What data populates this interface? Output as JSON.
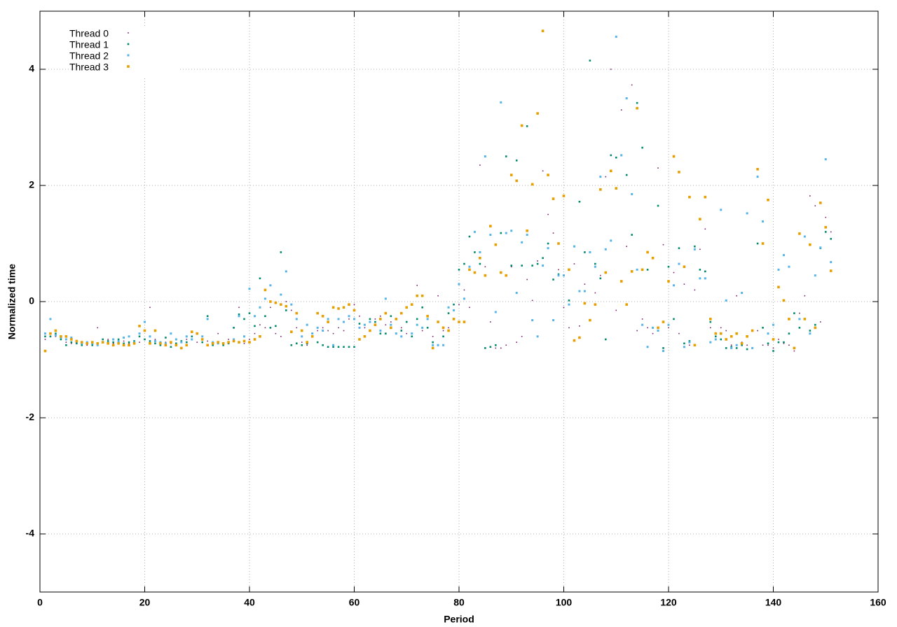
{
  "chart_data": {
    "type": "scatter",
    "x_label": "Period",
    "y_label": "Normalized time",
    "xlim": [
      0,
      160
    ],
    "ylim": [
      -5,
      5
    ],
    "xticks": [
      0,
      20,
      40,
      60,
      80,
      100,
      120,
      140,
      160
    ],
    "yticks": [
      -4,
      -2,
      0,
      2,
      4
    ],
    "grid": true,
    "legend": "top-left",
    "x": [
      1,
      2,
      3,
      4,
      5,
      6,
      7,
      8,
      9,
      10,
      11,
      12,
      13,
      14,
      15,
      16,
      17,
      18,
      19,
      20,
      21,
      22,
      23,
      24,
      25,
      26,
      27,
      28,
      29,
      30,
      31,
      32,
      33,
      34,
      35,
      36,
      37,
      38,
      39,
      40,
      41,
      42,
      43,
      44,
      45,
      46,
      47,
      48,
      49,
      50,
      51,
      52,
      53,
      54,
      55,
      56,
      57,
      58,
      59,
      60,
      61,
      62,
      63,
      64,
      65,
      66,
      67,
      68,
      69,
      70,
      71,
      72,
      73,
      74,
      75,
      76,
      77,
      78,
      79,
      80,
      81,
      82,
      83,
      84,
      85,
      86,
      87,
      88,
      89,
      90,
      91,
      92,
      93,
      94,
      95,
      96,
      97,
      98,
      99,
      100,
      101,
      102,
      103,
      104,
      105,
      106,
      107,
      108,
      109,
      110,
      111,
      112,
      113,
      114,
      115,
      116,
      117,
      118,
      119,
      120,
      121,
      122,
      123,
      124,
      125,
      126,
      127,
      128,
      129,
      130,
      131,
      132,
      133,
      134,
      135,
      136,
      137,
      138,
      139,
      140,
      141,
      142,
      143,
      144,
      145,
      146,
      147,
      148,
      149,
      150,
      151
    ],
    "series": [
      {
        "name": "Thread 0",
        "color": "#7a1f6e",
        "values": [
          -0.65,
          -0.55,
          -0.6,
          -0.65,
          -0.7,
          -0.72,
          -0.7,
          -0.72,
          -0.75,
          -0.7,
          -0.45,
          -0.7,
          -0.65,
          -0.72,
          -0.7,
          -0.68,
          -0.72,
          -0.7,
          -0.7,
          -0.65,
          -0.1,
          -0.65,
          -0.7,
          -0.7,
          -0.72,
          -0.75,
          -0.7,
          -0.65,
          -0.6,
          -0.7,
          -0.65,
          -0.68,
          -0.7,
          -0.55,
          -0.72,
          -0.65,
          -0.68,
          -0.1,
          -0.72,
          -0.65,
          -0.55,
          -0.4,
          -0.45,
          -0.1,
          -0.55,
          -0.6,
          0,
          -0.15,
          -0.45,
          -0.7,
          -0.75,
          -0.55,
          -0.5,
          -0.45,
          -0.5,
          -0.55,
          -0.45,
          -0.5,
          -0.3,
          -0.05,
          -0.25,
          -0.45,
          -0.35,
          -0.3,
          -0.25,
          -0.4,
          -0.35,
          -0.55,
          -0.45,
          -0.55,
          -0.05,
          0.28,
          -0.5,
          -0.3,
          -0.6,
          0.1,
          -0.5,
          -0.45,
          -0.3,
          -0.05,
          0.2,
          -0.1,
          0.5,
          2.35,
          0.6,
          -0.35,
          -0.8,
          -0.8,
          -0.75,
          0.6,
          -0.7,
          -0.6,
          0.38,
          0.02,
          0.7,
          2.25,
          1.5,
          1.18,
          0.55,
          -0.1,
          -0.45,
          0.65,
          -0.42,
          0.3,
          0.85,
          0.15,
          0.45,
          2.15,
          4.0,
          -0.15,
          3.3,
          0.95,
          3.73,
          -0.5,
          -0.3,
          -0.45,
          -0.55,
          2.3,
          0.98,
          -0.45,
          0.5,
          -0.55,
          0.3,
          -0.75,
          0.2,
          0.9,
          1.25,
          -0.45,
          -0.65,
          -0.45,
          -0.5,
          -0.75,
          0.1,
          -0.7,
          -0.75,
          -0.8,
          -0.5,
          -0.75,
          -0.75,
          -0.8,
          -0.65,
          -0.72,
          -0.75,
          -0.85,
          -0.2,
          0.1,
          1.82,
          1.65,
          -0.35,
          1.45,
          1.2
        ]
      },
      {
        "name": "Thread 1",
        "color": "#00896b",
        "values": [
          -0.6,
          -0.6,
          -0.55,
          -0.65,
          -0.75,
          -0.7,
          -0.72,
          -0.75,
          -0.72,
          -0.75,
          -0.72,
          -0.65,
          -0.68,
          -0.7,
          -0.65,
          -0.72,
          -0.7,
          -0.68,
          -0.6,
          -0.65,
          -0.68,
          -0.72,
          -0.75,
          -0.62,
          -0.78,
          -0.72,
          -0.68,
          -0.7,
          -0.6,
          -0.55,
          -0.7,
          -0.25,
          -0.75,
          -0.7,
          -0.75,
          -0.72,
          -0.45,
          -0.22,
          -0.3,
          -0.2,
          -0.42,
          0.4,
          -0.25,
          -0.45,
          -0.42,
          0.85,
          -0.15,
          -0.75,
          -0.72,
          -0.75,
          -0.72,
          -0.55,
          -0.7,
          -0.75,
          -0.78,
          -0.78,
          -0.78,
          -0.78,
          -0.78,
          -0.78,
          -0.38,
          -0.6,
          -0.3,
          -0.35,
          -0.55,
          -0.55,
          -0.25,
          -0.55,
          -0.5,
          -0.35,
          -0.6,
          -0.3,
          -0.1,
          -0.45,
          -0.7,
          -0.75,
          -0.6,
          -0.2,
          -0.05,
          0.55,
          0.65,
          1.12,
          0.85,
          0.65,
          -0.8,
          -0.78,
          -0.75,
          1.18,
          2.5,
          0.62,
          2.43,
          0.62,
          3.02,
          0.62,
          0.65,
          0.75,
          1.0,
          0.38,
          0.47,
          0.45,
          0.02,
          0.95,
          1.72,
          0.85,
          4.15,
          0.65,
          0.4,
          -0.65,
          2.52,
          2.48,
          2.52,
          2.18,
          1.15,
          3.42,
          2.65,
          0.55,
          -0.45,
          1.65,
          -0.8,
          0.6,
          -0.3,
          0.92,
          -0.72,
          -0.68,
          0.95,
          0.55,
          0.52,
          -0.35,
          -0.6,
          -0.65,
          -0.8,
          -0.78,
          -0.8,
          -0.75,
          -0.82,
          -0.5,
          1.0,
          -0.45,
          -0.72,
          -0.85,
          -0.7,
          -0.7,
          -0.55,
          -0.2,
          -0.45,
          -0.3,
          -0.5,
          -0.4,
          0.92,
          1.2,
          1.08
        ]
      },
      {
        "name": "Thread 2",
        "color": "#56b4e9",
        "values": [
          -0.55,
          -0.3,
          -0.58,
          -0.62,
          -0.65,
          -0.62,
          -0.68,
          -0.72,
          -0.7,
          -0.72,
          -0.75,
          -0.7,
          -0.72,
          -0.65,
          -0.68,
          -0.62,
          -0.6,
          -0.7,
          -0.55,
          -0.35,
          -0.6,
          -0.68,
          -0.7,
          -0.72,
          -0.55,
          -0.65,
          -0.7,
          -0.6,
          -0.65,
          -0.55,
          -0.6,
          -0.3,
          -0.7,
          -0.72,
          -0.72,
          -0.7,
          -0.65,
          -0.25,
          -0.6,
          0.22,
          -0.25,
          -0.1,
          0.05,
          0.28,
          -0.02,
          0.12,
          0.52,
          -0.05,
          -0.3,
          -0.6,
          -0.4,
          -0.55,
          -0.45,
          -0.5,
          -0.3,
          -0.75,
          -0.3,
          -0.35,
          -0.25,
          -0.3,
          -0.45,
          -0.4,
          -0.35,
          -0.4,
          -0.5,
          0.05,
          -0.4,
          -0.55,
          -0.6,
          -0.1,
          -0.55,
          -0.4,
          -0.45,
          -0.3,
          -0.75,
          -0.75,
          -0.75,
          -0.1,
          -0.15,
          0.3,
          0.05,
          0.6,
          1.2,
          0.85,
          2.5,
          1.15,
          -0.18,
          3.43,
          1.18,
          1.22,
          0.15,
          1.02,
          1.15,
          -0.32,
          -0.6,
          0.62,
          0.92,
          -0.32,
          0.45,
          0.45,
          -0.05,
          0.95,
          0.18,
          0.18,
          0.85,
          0.6,
          2.15,
          0.9,
          1.05,
          4.56,
          2.52,
          3.5,
          1.85,
          0.55,
          -0.4,
          -0.78,
          -0.45,
          -0.5,
          -0.85,
          -0.4,
          0.28,
          0.65,
          -0.78,
          -0.7,
          0.9,
          0.4,
          0.4,
          -0.7,
          -0.65,
          1.58,
          0.02,
          -0.8,
          -0.75,
          0.15,
          1.52,
          -0.8,
          2.15,
          1.38,
          -0.55,
          -0.4,
          0.55,
          0.8,
          0.6,
          -0.8,
          -0.3,
          1.12,
          -0.55,
          0.45,
          0.93,
          2.45,
          0.68
        ]
      },
      {
        "name": "Thread 3",
        "color": "#e69f00",
        "values": [
          -0.85,
          -0.55,
          -0.5,
          -0.6,
          -0.6,
          -0.65,
          -0.68,
          -0.7,
          -0.72,
          -0.7,
          -0.72,
          -0.7,
          -0.72,
          -0.75,
          -0.72,
          -0.75,
          -0.75,
          -0.72,
          -0.42,
          -0.5,
          -0.72,
          -0.5,
          -0.72,
          -0.75,
          -0.7,
          -0.75,
          -0.8,
          -0.75,
          -0.52,
          -0.55,
          -0.65,
          -0.75,
          -0.72,
          -0.7,
          -0.72,
          -0.7,
          -0.68,
          -0.7,
          -0.68,
          -0.7,
          -0.65,
          -0.6,
          0.2,
          0,
          -0.02,
          -0.05,
          -0.08,
          -0.52,
          -0.2,
          -0.5,
          -0.7,
          -0.6,
          -0.2,
          -0.25,
          -0.35,
          -0.1,
          -0.12,
          -0.1,
          -0.05,
          -0.15,
          -0.65,
          -0.6,
          -0.5,
          -0.4,
          -0.3,
          -0.2,
          -0.45,
          -0.3,
          -0.2,
          -0.1,
          -0.05,
          0.1,
          0.1,
          -0.25,
          -0.8,
          -0.35,
          -0.45,
          -0.5,
          -0.3,
          -0.35,
          -0.35,
          0.55,
          0.5,
          0.75,
          0.45,
          1.3,
          0.98,
          0.5,
          0.45,
          2.18,
          2.08,
          3.03,
          1.22,
          2.02,
          3.24,
          4.66,
          2.18,
          1.77,
          1.0,
          1.82,
          0.55,
          -0.67,
          -0.62,
          -0.03,
          -0.32,
          -0.05,
          1.93,
          0.5,
          2.25,
          1.95,
          0.35,
          -0.05,
          0.52,
          3.33,
          0.55,
          0.85,
          0.75,
          -0.45,
          -0.35,
          0.35,
          2.5,
          2.23,
          0.6,
          1.8,
          -0.75,
          1.42,
          1.8,
          -0.3,
          -0.55,
          -0.55,
          -0.65,
          -0.6,
          -0.55,
          -0.72,
          -0.6,
          -0.5,
          2.28,
          1.0,
          1.75,
          -0.65,
          0.25,
          0.02,
          -0.3,
          -0.8,
          1.17,
          -0.3,
          0.98,
          -0.45,
          1.7,
          1.28,
          0.53
        ]
      }
    ]
  }
}
